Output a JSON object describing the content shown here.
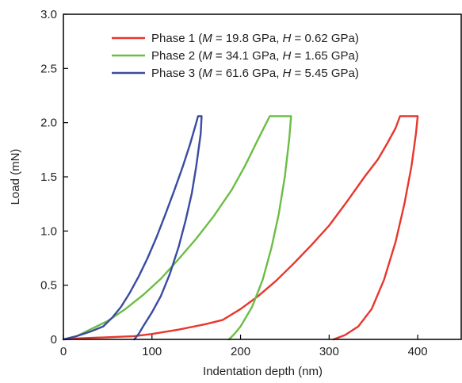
{
  "chart_data": {
    "type": "line",
    "xlabel": "Indentation depth (nm)",
    "ylabel": "Load (mN)",
    "xlim": [
      0,
      450
    ],
    "ylim": [
      0,
      3.0
    ],
    "x_ticks": [
      0,
      100,
      200,
      300,
      400
    ],
    "y_ticks": [
      0,
      0.5,
      1.0,
      1.5,
      2.0,
      2.5,
      3.0
    ],
    "x_tick_labels": [
      "0",
      "100",
      "200",
      "300",
      "400"
    ],
    "y_tick_labels": [
      "0",
      "0.5",
      "1.0",
      "1.5",
      "2.0",
      "2.5",
      "3.0"
    ],
    "grid": false,
    "legend_position": "top-right",
    "series": [
      {
        "name_parts": [
          "Phase 1 (",
          "M",
          " = 19.8 GPa, ",
          "H",
          " = 0.62 GPa)"
        ],
        "color": "#e8362d",
        "points": [
          [
            0,
            0
          ],
          [
            20,
            0.01
          ],
          [
            50,
            0.02
          ],
          [
            80,
            0.03
          ],
          [
            100,
            0.05
          ],
          [
            130,
            0.09
          ],
          [
            160,
            0.14
          ],
          [
            180,
            0.18
          ],
          [
            200,
            0.28
          ],
          [
            220,
            0.4
          ],
          [
            240,
            0.54
          ],
          [
            260,
            0.7
          ],
          [
            280,
            0.87
          ],
          [
            300,
            1.05
          ],
          [
            320,
            1.27
          ],
          [
            340,
            1.5
          ],
          [
            355,
            1.66
          ],
          [
            365,
            1.8
          ],
          [
            375,
            1.95
          ],
          [
            380,
            2.06
          ],
          [
            400,
            2.06
          ],
          [
            398,
            1.9
          ],
          [
            393,
            1.6
          ],
          [
            385,
            1.25
          ],
          [
            375,
            0.9
          ],
          [
            362,
            0.55
          ],
          [
            348,
            0.28
          ],
          [
            333,
            0.12
          ],
          [
            318,
            0.04
          ],
          [
            305,
            0
          ]
        ]
      },
      {
        "name_parts": [
          "Phase 2 (",
          "M",
          " = 34.1 GPa, ",
          "H",
          " = 1.65 GPa)"
        ],
        "color": "#6cbd45",
        "points": [
          [
            0,
            0
          ],
          [
            15,
            0.03
          ],
          [
            30,
            0.09
          ],
          [
            50,
            0.17
          ],
          [
            70,
            0.28
          ],
          [
            90,
            0.41
          ],
          [
            110,
            0.56
          ],
          [
            130,
            0.74
          ],
          [
            150,
            0.93
          ],
          [
            170,
            1.14
          ],
          [
            190,
            1.38
          ],
          [
            205,
            1.6
          ],
          [
            220,
            1.85
          ],
          [
            228,
            1.98
          ],
          [
            233,
            2.06
          ],
          [
            257,
            2.06
          ],
          [
            255,
            1.85
          ],
          [
            250,
            1.5
          ],
          [
            243,
            1.15
          ],
          [
            235,
            0.85
          ],
          [
            225,
            0.55
          ],
          [
            213,
            0.3
          ],
          [
            200,
            0.12
          ],
          [
            193,
            0.05
          ],
          [
            187,
            0
          ]
        ]
      },
      {
        "name_parts": [
          "Phase 3 (",
          "M",
          " = 61.6 GPa, ",
          "H",
          " = 5.45 GPa)"
        ],
        "color": "#3a4ba1",
        "points": [
          [
            0,
            0
          ],
          [
            15,
            0.03
          ],
          [
            30,
            0.07
          ],
          [
            45,
            0.12
          ],
          [
            55,
            0.2
          ],
          [
            65,
            0.3
          ],
          [
            75,
            0.43
          ],
          [
            85,
            0.58
          ],
          [
            95,
            0.75
          ],
          [
            105,
            0.94
          ],
          [
            115,
            1.15
          ],
          [
            125,
            1.37
          ],
          [
            135,
            1.6
          ],
          [
            143,
            1.8
          ],
          [
            150,
            2.0
          ],
          [
            152,
            2.06
          ],
          [
            156,
            2.06
          ],
          [
            155,
            1.9
          ],
          [
            150,
            1.6
          ],
          [
            145,
            1.35
          ],
          [
            138,
            1.1
          ],
          [
            130,
            0.85
          ],
          [
            120,
            0.6
          ],
          [
            110,
            0.4
          ],
          [
            100,
            0.25
          ],
          [
            90,
            0.12
          ],
          [
            85,
            0.05
          ],
          [
            80,
            0
          ]
        ]
      }
    ]
  }
}
